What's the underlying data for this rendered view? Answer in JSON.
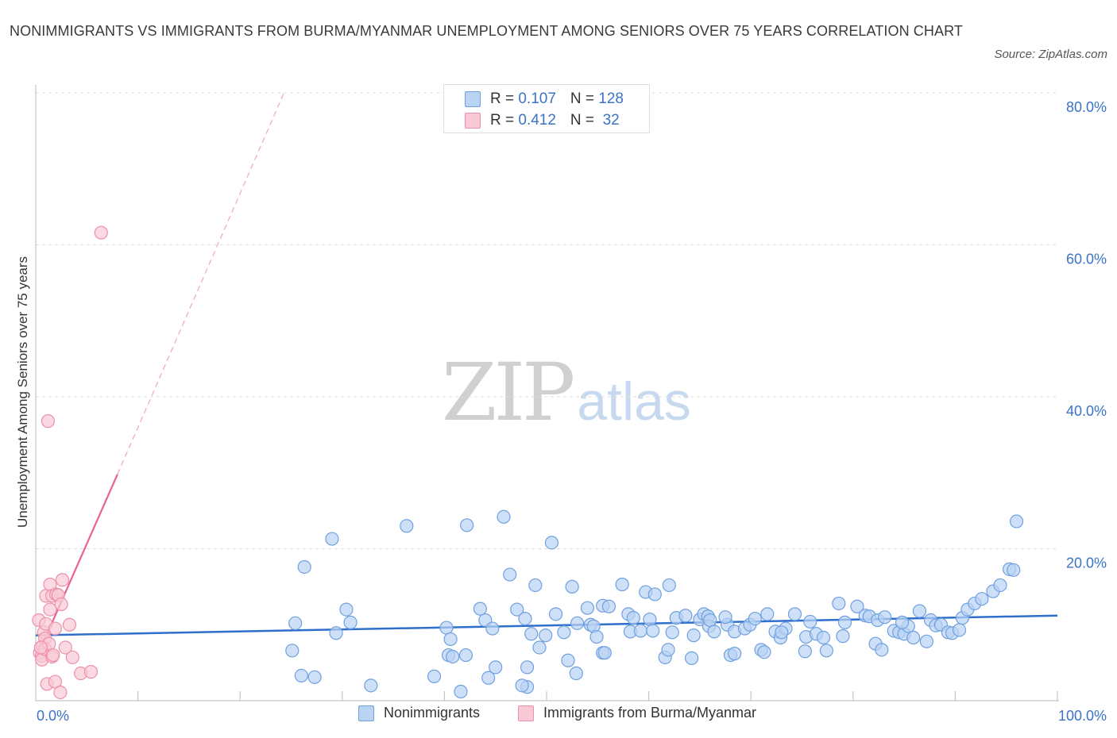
{
  "header": {
    "title": "NONIMMIGRANTS VS IMMIGRANTS FROM BURMA/MYANMAR UNEMPLOYMENT AMONG SENIORS OVER 75 YEARS CORRELATION CHART",
    "source": "Source: ZipAtlas.com"
  },
  "watermark": {
    "zip": "ZIP",
    "atlas": "atlas"
  },
  "legend": {
    "rows": [
      {
        "r_label": "R = ",
        "r_value": "0.107",
        "n_label": "N = ",
        "n_value": "128"
      },
      {
        "r_label": "R = ",
        "r_value": "0.412",
        "n_label": "N = ",
        "n_value": " 32"
      }
    ]
  },
  "colors": {
    "blue_fill": "#b9d3f3",
    "blue_stroke": "#6fa0e0",
    "blue_line": "#2f6fcc",
    "pink_fill": "#f8c9d6",
    "pink_stroke": "#ee8faa",
    "pink_line": "#e9628d",
    "grid": "#dddddd",
    "axis_text": "#3b73c7"
  },
  "chart_data": {
    "type": "scatter",
    "title": "NONIMMIGRANTS VS IMMIGRANTS FROM BURMA/MYANMAR UNEMPLOYMENT AMONG SENIORS OVER 75 YEARS CORRELATION CHART",
    "xlabel": "",
    "ylabel": "Unemployment Among Seniors over 75 years",
    "xlim": [
      0,
      100
    ],
    "ylim": [
      0,
      80
    ],
    "x_tick_labels": [
      "0.0%",
      "100.0%"
    ],
    "y_ticks": [
      20,
      40,
      60,
      80
    ],
    "y_tick_labels": [
      "20.0%",
      "40.0%",
      "60.0%",
      "80.0%"
    ],
    "grid": true,
    "series": [
      {
        "name": "Nonimmigrants",
        "color": "blue",
        "R": 0.107,
        "N": 128,
        "trend": {
          "x": [
            0,
            100
          ],
          "y": [
            8.6,
            11.2
          ]
        },
        "points": [
          [
            25.1,
            6.6
          ],
          [
            25.4,
            10.2
          ],
          [
            26.0,
            3.3
          ],
          [
            26.3,
            17.6
          ],
          [
            27.3,
            3.1
          ],
          [
            29.0,
            21.3
          ],
          [
            29.4,
            8.9
          ],
          [
            30.4,
            12.0
          ],
          [
            30.8,
            10.3
          ],
          [
            32.8,
            2.0
          ],
          [
            36.3,
            23.0
          ],
          [
            39.0,
            3.2
          ],
          [
            40.2,
            9.6
          ],
          [
            40.4,
            6.0
          ],
          [
            40.6,
            8.1
          ],
          [
            41.6,
            1.2
          ],
          [
            42.1,
            6.0
          ],
          [
            42.2,
            23.1
          ],
          [
            44.0,
            10.6
          ],
          [
            44.3,
            3.0
          ],
          [
            44.7,
            9.5
          ],
          [
            45.0,
            4.4
          ],
          [
            45.8,
            24.2
          ],
          [
            46.4,
            16.6
          ],
          [
            47.1,
            12.0
          ],
          [
            47.9,
            10.8
          ],
          [
            48.1,
            4.4
          ],
          [
            48.1,
            1.8
          ],
          [
            48.5,
            8.8
          ],
          [
            48.9,
            15.2
          ],
          [
            49.3,
            7.0
          ],
          [
            49.9,
            8.6
          ],
          [
            50.5,
            20.8
          ],
          [
            50.9,
            11.4
          ],
          [
            51.7,
            9.0
          ],
          [
            52.1,
            5.3
          ],
          [
            52.5,
            15.0
          ],
          [
            52.9,
            3.6
          ],
          [
            53.0,
            10.2
          ],
          [
            54.0,
            12.2
          ],
          [
            54.3,
            10.0
          ],
          [
            54.6,
            9.8
          ],
          [
            54.9,
            8.4
          ],
          [
            55.5,
            6.3
          ],
          [
            55.5,
            12.5
          ],
          [
            55.7,
            6.3
          ],
          [
            56.1,
            12.4
          ],
          [
            57.4,
            15.3
          ],
          [
            58.0,
            11.4
          ],
          [
            58.2,
            9.1
          ],
          [
            58.5,
            10.9
          ],
          [
            59.2,
            9.2
          ],
          [
            59.7,
            14.3
          ],
          [
            60.1,
            10.7
          ],
          [
            60.4,
            9.2
          ],
          [
            61.6,
            5.7
          ],
          [
            61.9,
            6.7
          ],
          [
            62.0,
            15.2
          ],
          [
            62.3,
            9.0
          ],
          [
            62.7,
            10.9
          ],
          [
            63.6,
            11.2
          ],
          [
            64.2,
            5.6
          ],
          [
            64.4,
            8.6
          ],
          [
            65.0,
            10.7
          ],
          [
            65.4,
            11.4
          ],
          [
            65.8,
            11.1
          ],
          [
            65.9,
            9.8
          ],
          [
            66.0,
            10.6
          ],
          [
            66.4,
            9.1
          ],
          [
            67.7,
            10.0
          ],
          [
            68.0,
            6.0
          ],
          [
            68.4,
            6.2
          ],
          [
            68.4,
            9.1
          ],
          [
            69.4,
            9.5
          ],
          [
            69.9,
            10.0
          ],
          [
            70.4,
            10.8
          ],
          [
            71.0,
            6.7
          ],
          [
            71.3,
            6.4
          ],
          [
            71.6,
            11.4
          ],
          [
            72.4,
            9.1
          ],
          [
            72.9,
            8.3
          ],
          [
            73.4,
            9.5
          ],
          [
            74.3,
            11.4
          ],
          [
            75.3,
            6.5
          ],
          [
            75.4,
            8.4
          ],
          [
            75.8,
            10.4
          ],
          [
            76.4,
            8.8
          ],
          [
            77.1,
            8.3
          ],
          [
            77.4,
            6.6
          ],
          [
            78.6,
            12.8
          ],
          [
            79.0,
            8.5
          ],
          [
            79.2,
            10.3
          ],
          [
            80.4,
            12.4
          ],
          [
            81.2,
            11.2
          ],
          [
            81.6,
            11.1
          ],
          [
            82.2,
            7.5
          ],
          [
            82.4,
            10.6
          ],
          [
            82.8,
            6.7
          ],
          [
            83.1,
            11.0
          ],
          [
            84.0,
            9.2
          ],
          [
            84.5,
            9.0
          ],
          [
            85.0,
            8.8
          ],
          [
            85.4,
            9.8
          ],
          [
            85.9,
            8.3
          ],
          [
            86.5,
            11.8
          ],
          [
            87.2,
            7.8
          ],
          [
            87.6,
            10.6
          ],
          [
            88.1,
            9.9
          ],
          [
            88.6,
            10.0
          ],
          [
            89.3,
            9.0
          ],
          [
            89.7,
            8.9
          ],
          [
            90.4,
            9.3
          ],
          [
            90.7,
            10.9
          ],
          [
            91.2,
            12.0
          ],
          [
            91.9,
            12.8
          ],
          [
            92.6,
            13.4
          ],
          [
            93.7,
            14.4
          ],
          [
            94.4,
            15.2
          ],
          [
            95.3,
            17.3
          ],
          [
            95.7,
            17.2
          ],
          [
            96.0,
            23.6
          ],
          [
            40.8,
            5.8
          ],
          [
            43.5,
            12.1
          ],
          [
            47.6,
            2.0
          ],
          [
            60.6,
            14.0
          ],
          [
            67.5,
            11.0
          ],
          [
            73.0,
            9.0
          ],
          [
            84.8,
            10.3
          ]
        ]
      },
      {
        "name": "Immigrants from Burma/Myanmar",
        "color": "pink",
        "R": 0.412,
        "N": 32,
        "trend": {
          "x": [
            0,
            8.0
          ],
          "y": [
            5.4,
            29.8
          ]
        },
        "trend_extension": {
          "x": [
            8.0,
            24.3
          ],
          "y": [
            29.8,
            80.0
          ]
        },
        "points": [
          [
            0.3,
            10.6
          ],
          [
            0.4,
            6.3
          ],
          [
            0.6,
            5.9
          ],
          [
            0.6,
            5.4
          ],
          [
            0.7,
            7.2
          ],
          [
            0.8,
            9.0
          ],
          [
            0.9,
            8.2
          ],
          [
            0.9,
            6.8
          ],
          [
            1.0,
            13.8
          ],
          [
            1.0,
            10.1
          ],
          [
            1.1,
            2.2
          ],
          [
            1.2,
            36.8
          ],
          [
            1.3,
            7.5
          ],
          [
            1.4,
            15.3
          ],
          [
            1.4,
            12.0
          ],
          [
            1.6,
            13.8
          ],
          [
            1.6,
            5.8
          ],
          [
            1.7,
            6.0
          ],
          [
            1.9,
            9.5
          ],
          [
            1.9,
            2.5
          ],
          [
            2.0,
            14.0
          ],
          [
            2.2,
            13.9
          ],
          [
            2.4,
            1.1
          ],
          [
            2.5,
            12.7
          ],
          [
            2.6,
            15.9
          ],
          [
            2.9,
            7.0
          ],
          [
            3.3,
            10.0
          ],
          [
            3.6,
            5.7
          ],
          [
            4.4,
            3.6
          ],
          [
            5.4,
            3.8
          ],
          [
            6.4,
            61.6
          ],
          [
            0.5,
            7.0
          ]
        ]
      }
    ]
  },
  "bottom_legend": {
    "items": [
      "Nonimmigrants",
      "Immigrants from Burma/Myanmar"
    ]
  }
}
